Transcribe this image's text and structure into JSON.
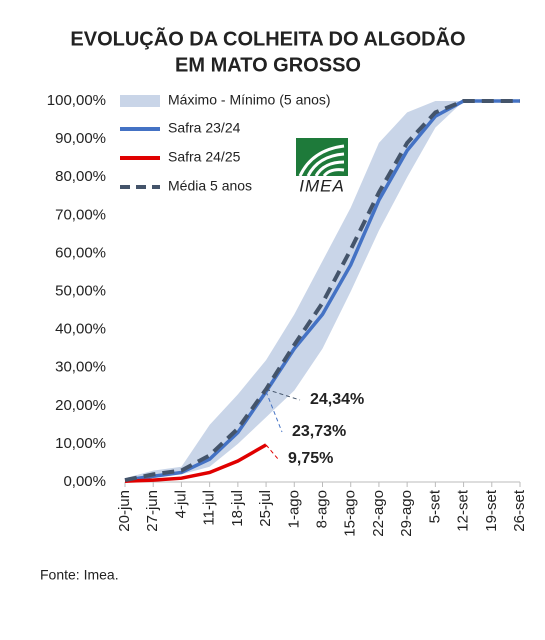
{
  "chart_data": {
    "type": "line",
    "title": [
      "EVOLUÇÃO DA COLHEITA DO ALGODÃO",
      "EM MATO GROSSO"
    ],
    "categories": [
      "20-jun",
      "27-jun",
      "4-jul",
      "11-jul",
      "18-jul",
      "25-jul",
      "1-ago",
      "8-ago",
      "15-ago",
      "22-ago",
      "29-ago",
      "5-set",
      "12-set",
      "19-set",
      "26-set"
    ],
    "band": {
      "name": "Máximo - Mínimo (5 anos)",
      "color": "#c9d5e8",
      "max": [
        1,
        3,
        4,
        15,
        23,
        32,
        44,
        58,
        72,
        89,
        97,
        100,
        100,
        100,
        100
      ],
      "min": [
        0,
        1,
        2,
        4,
        10,
        17,
        24,
        35,
        50,
        66,
        80,
        93,
        100,
        100,
        100
      ]
    },
    "series": [
      {
        "name": "Safra 23/24",
        "color": "#4472c4",
        "dash": false,
        "values": [
          0.5,
          1.5,
          2.5,
          6,
          13,
          23.73,
          35,
          44,
          57,
          74,
          87,
          96,
          100,
          100,
          100
        ],
        "value_labels": [
          null,
          null,
          null,
          null,
          null,
          "23,73%",
          null,
          null,
          null,
          null,
          null,
          null,
          null,
          null,
          null
        ]
      },
      {
        "name": "Safra 24/25",
        "color": "#e00000",
        "dash": false,
        "values": [
          0.2,
          0.5,
          1,
          2.5,
          5.5,
          9.75,
          null,
          null,
          null,
          null,
          null,
          null,
          null,
          null,
          null
        ],
        "value_labels": [
          null,
          null,
          null,
          null,
          null,
          "9,75%",
          null,
          null,
          null,
          null,
          null,
          null,
          null,
          null,
          null
        ]
      },
      {
        "name": "Média 5 anos",
        "color": "#44546a",
        "dash": true,
        "values": [
          0.5,
          2,
          3,
          7,
          14,
          24.34,
          36,
          47,
          61,
          76,
          89,
          97,
          100,
          100,
          100
        ],
        "value_labels": [
          null,
          null,
          null,
          null,
          null,
          "24,34%",
          null,
          null,
          null,
          null,
          null,
          null,
          null,
          null,
          null
        ]
      }
    ],
    "ylim": [
      0,
      100
    ],
    "yticks": [
      {
        "value": 0,
        "label": "0,00%"
      },
      {
        "value": 10,
        "label": "10,00%"
      },
      {
        "value": 20,
        "label": "20,00%"
      },
      {
        "value": 30,
        "label": "30,00%"
      },
      {
        "value": 40,
        "label": "40,00%"
      },
      {
        "value": 50,
        "label": "50,00%"
      },
      {
        "value": 60,
        "label": "60,00%"
      },
      {
        "value": 70,
        "label": "70,00%"
      },
      {
        "value": 80,
        "label": "80,00%"
      },
      {
        "value": 90,
        "label": "90,00%"
      },
      {
        "value": 100,
        "label": "100,00%"
      }
    ],
    "logo": "IMEA",
    "source": "Fonte: Imea."
  }
}
